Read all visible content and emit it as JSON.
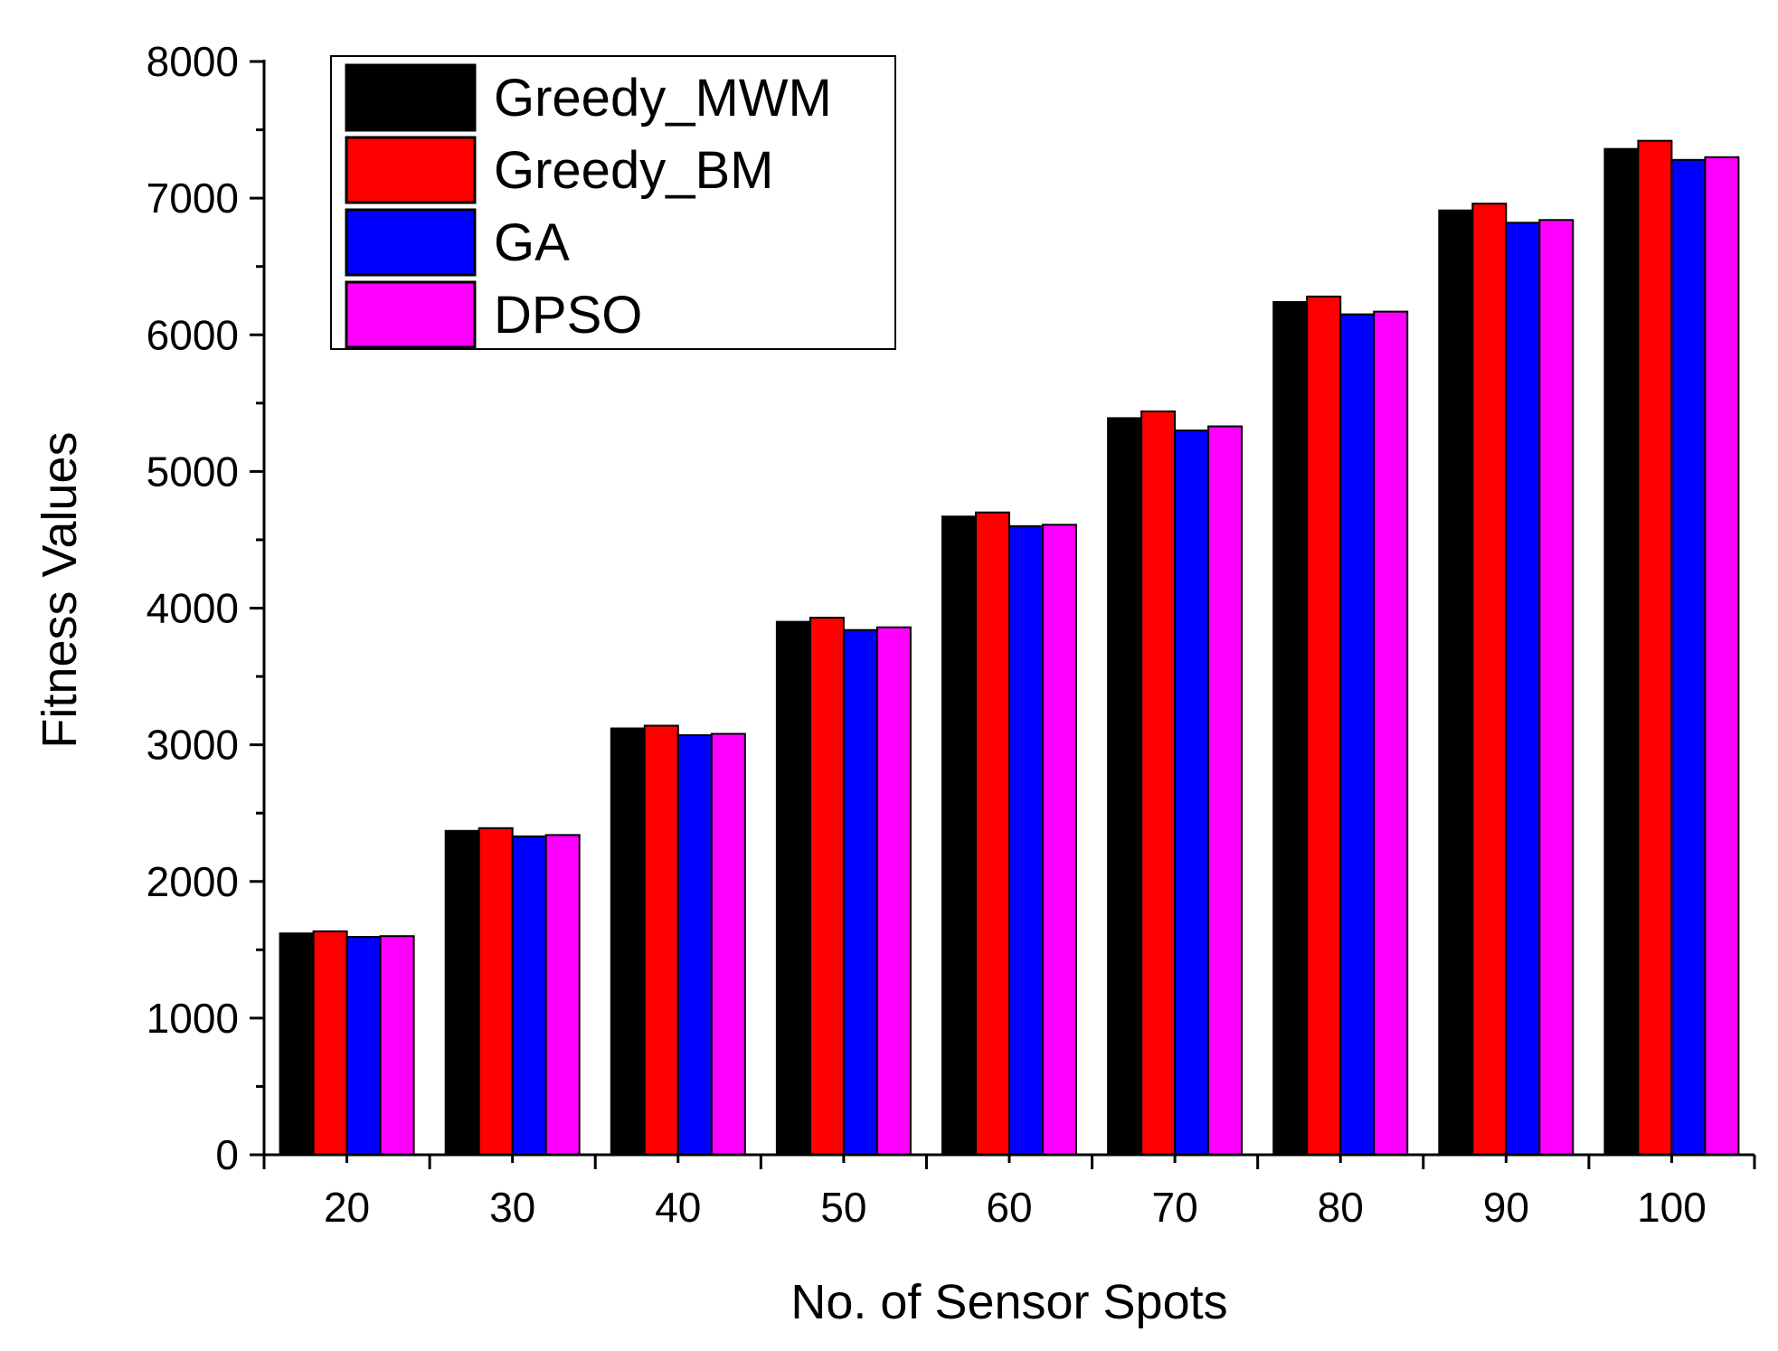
{
  "chart_data": {
    "type": "bar",
    "title": "",
    "xlabel": "No. of Sensor Spots",
    "ylabel": "Fitness Values",
    "ylim": [
      0,
      8000
    ],
    "yticks": [
      0,
      1000,
      2000,
      3000,
      4000,
      5000,
      6000,
      7000,
      8000
    ],
    "ytick_labels": [
      "0",
      "1000",
      "2000",
      "3000",
      "4000",
      "5000",
      "6000",
      "7000",
      "8000"
    ],
    "categories": [
      "20",
      "30",
      "40",
      "50",
      "60",
      "70",
      "80",
      "90",
      "100"
    ],
    "grid": false,
    "legend_position": "top-left",
    "series": [
      {
        "name": "Greedy_MWM",
        "color": "#000000",
        "values": [
          1620,
          2370,
          3120,
          3900,
          4670,
          5390,
          6240,
          6910,
          7360
        ]
      },
      {
        "name": "Greedy_BM",
        "color": "#ff0000",
        "values": [
          1635,
          2390,
          3140,
          3930,
          4700,
          5440,
          6280,
          6960,
          7420
        ]
      },
      {
        "name": "GA",
        "color": "#0000ff",
        "values": [
          1595,
          2330,
          3070,
          3840,
          4600,
          5300,
          6150,
          6820,
          7280
        ]
      },
      {
        "name": "DPSO",
        "color": "#ff00ff",
        "values": [
          1600,
          2340,
          3080,
          3860,
          4610,
          5330,
          6170,
          6840,
          7300
        ]
      }
    ]
  }
}
